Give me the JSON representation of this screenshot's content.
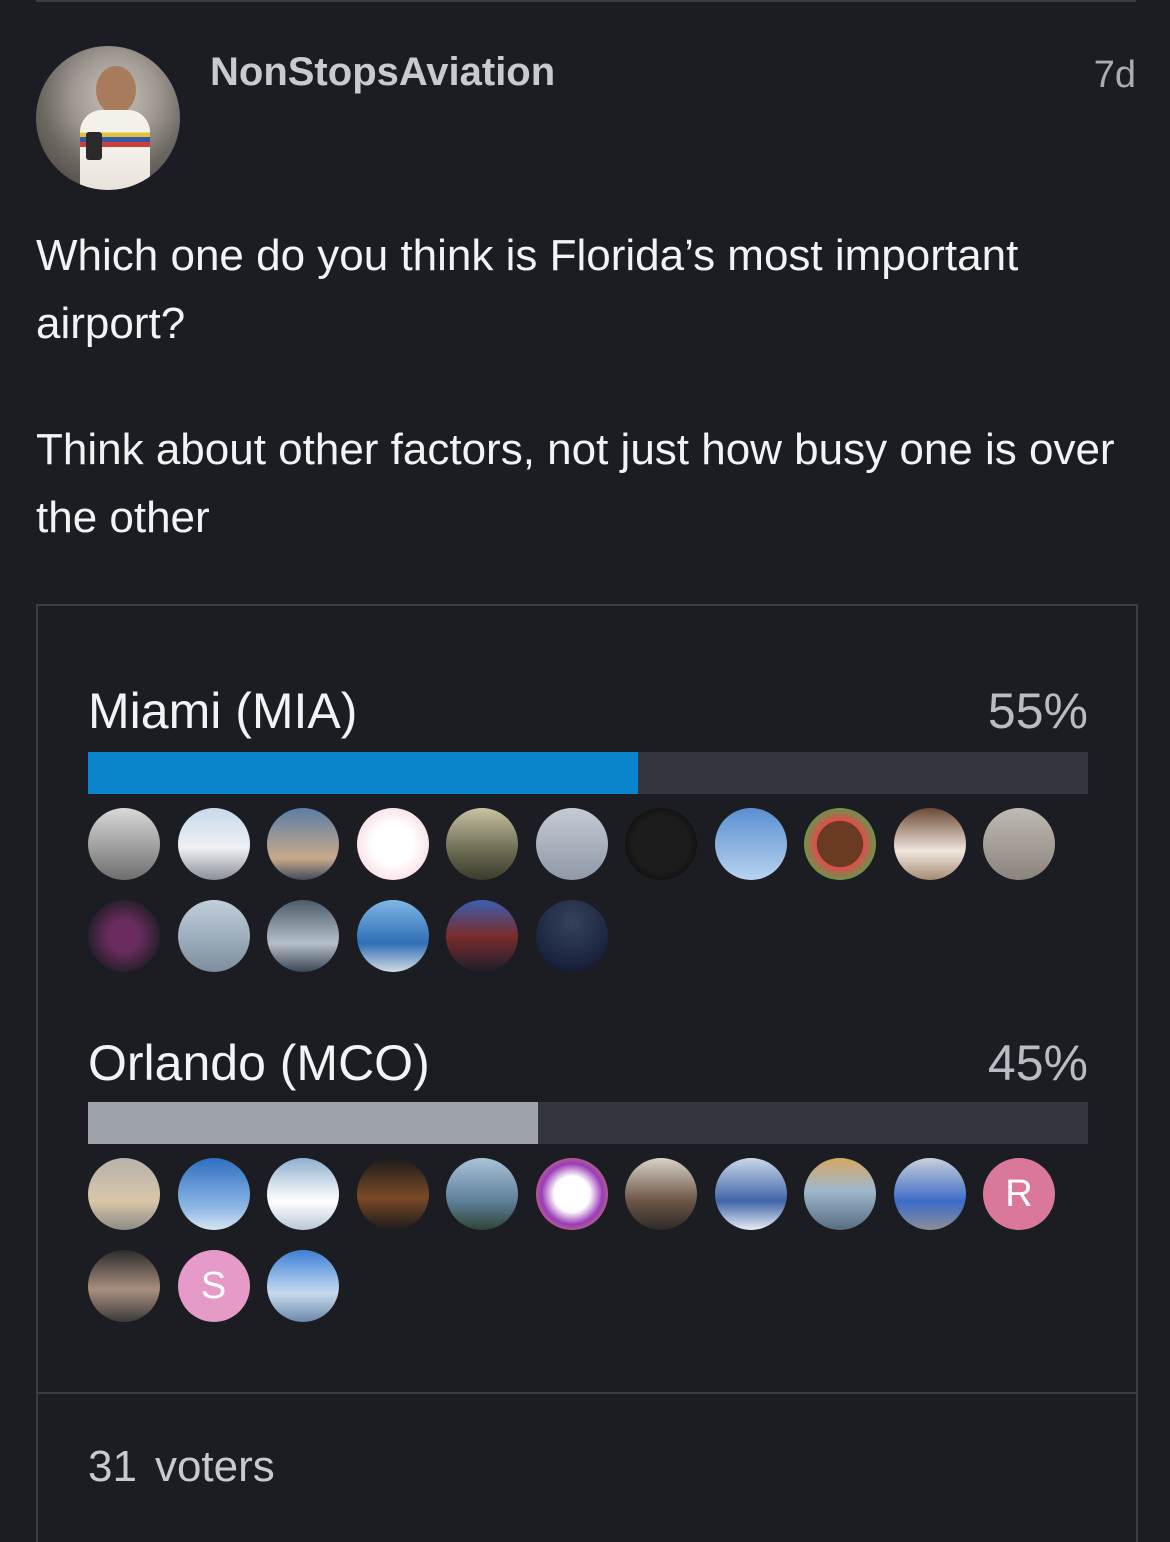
{
  "post": {
    "username": "NonStopsAviation",
    "age": "7d",
    "question": "Which one do you think is Florida’s most important airport?",
    "note": "Think about other factors, not just how busy one is over the other"
  },
  "poll": {
    "options": [
      {
        "label": "Miami (MIA)",
        "percent_text": "55%",
        "percent": 55,
        "bar_color": "#0a84cc",
        "voters": [
          {
            "bg": "linear-gradient(180deg,#d9d9d9,#6e6e6e)",
            "initial": ""
          },
          {
            "bg": "linear-gradient(180deg,#c7d8ea,#eef1f4 55%,#8a8f96)",
            "initial": ""
          },
          {
            "bg": "linear-gradient(180deg,#5b7ea6,#c9a98a 70%,#3e4c5e)",
            "initial": ""
          },
          {
            "bg": "radial-gradient(circle,#ffffff 40%,#f4c9d3 100%)",
            "initial": ""
          },
          {
            "bg": "linear-gradient(180deg,#c8c2a2,#6b6a52 60%,#3a3b2c)",
            "initial": ""
          },
          {
            "bg": "linear-gradient(180deg,#c5cbd4,#8f99a8)",
            "initial": ""
          },
          {
            "bg": "radial-gradient(circle,#1c1c1c 55%,#000 100%)",
            "initial": ""
          },
          {
            "bg": "linear-gradient(180deg,#5b8fd1,#b7d3f0)",
            "initial": ""
          },
          {
            "bg": "radial-gradient(circle,#6b3a22 45%,#e24b4b 46%,#3cb04c 80%)",
            "initial": ""
          },
          {
            "bg": "linear-gradient(180deg,#6d4a36,#efe6dd 60%,#a58b73)",
            "initial": ""
          },
          {
            "bg": "linear-gradient(180deg,#bfbab3,#8a847c)",
            "initial": ""
          },
          {
            "bg": "radial-gradient(circle,#6a2b5f 30%,#1b1d22 80%)",
            "initial": ""
          },
          {
            "bg": "linear-gradient(180deg,#c1cfdb,#7d8e9e)",
            "initial": ""
          },
          {
            "bg": "linear-gradient(180deg,#4d5a69,#b4bfca 60%,#3c4754)",
            "initial": ""
          },
          {
            "bg": "linear-gradient(180deg,#7fb6e6,#2f6fb6 60%,#d2dbe4)",
            "initial": ""
          },
          {
            "bg": "linear-gradient(180deg,#3a5fb0,#7a2c2c 50%,#1e1e2a)",
            "initial": ""
          },
          {
            "bg": "radial-gradient(circle at 50% 30%,#35425c,#0e1630)",
            "initial": ""
          }
        ]
      },
      {
        "label": "Orlando (MCO)",
        "percent_text": "45%",
        "percent": 45,
        "bar_color": "#9ea2a9",
        "voters": [
          {
            "bg": "linear-gradient(180deg,#b7b2ab,#d8c6a8 60%,#8d8a85)",
            "initial": ""
          },
          {
            "bg": "linear-gradient(180deg,#2f6fc1,#8fb8e6 70%,#d7e5f3)",
            "initial": ""
          },
          {
            "bg": "linear-gradient(180deg,#8fb0cf,#ffffff 60%,#b9c8d6)",
            "initial": ""
          },
          {
            "bg": "linear-gradient(180deg,#1b1b1b,#7b4a26 55%,#1b1b1b)",
            "initial": ""
          },
          {
            "bg": "linear-gradient(180deg,#a9c3d8,#5f7f99 60%,#2e4436)",
            "initial": ""
          },
          {
            "bg": "radial-gradient(circle,#ffffff 35%,#9a3bb7 60%,#f2b33c 100%)",
            "initial": ""
          },
          {
            "bg": "linear-gradient(180deg,#d9d2c8,#6b5546 60%,#2d2a27)",
            "initial": ""
          },
          {
            "bg": "linear-gradient(180deg,#c8d8ea,#3f64a8 60%,#e8eef5)",
            "initial": ""
          },
          {
            "bg": "linear-gradient(180deg,#d6a764,#9fb7cc 45%,#566d82)",
            "initial": ""
          },
          {
            "bg": "linear-gradient(180deg,#c8d0d9,#3c6bc9 60%,#8b9097)",
            "initial": ""
          },
          {
            "bg": "#d9789a",
            "initial": "R"
          },
          {
            "bg": "linear-gradient(180deg,#2c2c2c,#a98f7e 55%,#3a3a3a)",
            "initial": ""
          },
          {
            "bg": "#e59ac8",
            "initial": "S"
          },
          {
            "bg": "linear-gradient(180deg,#3d7fd6,#c6dbef 60%,#6c87a8)",
            "initial": ""
          }
        ]
      }
    ],
    "voters_count": "31",
    "voters_label": "voters"
  }
}
